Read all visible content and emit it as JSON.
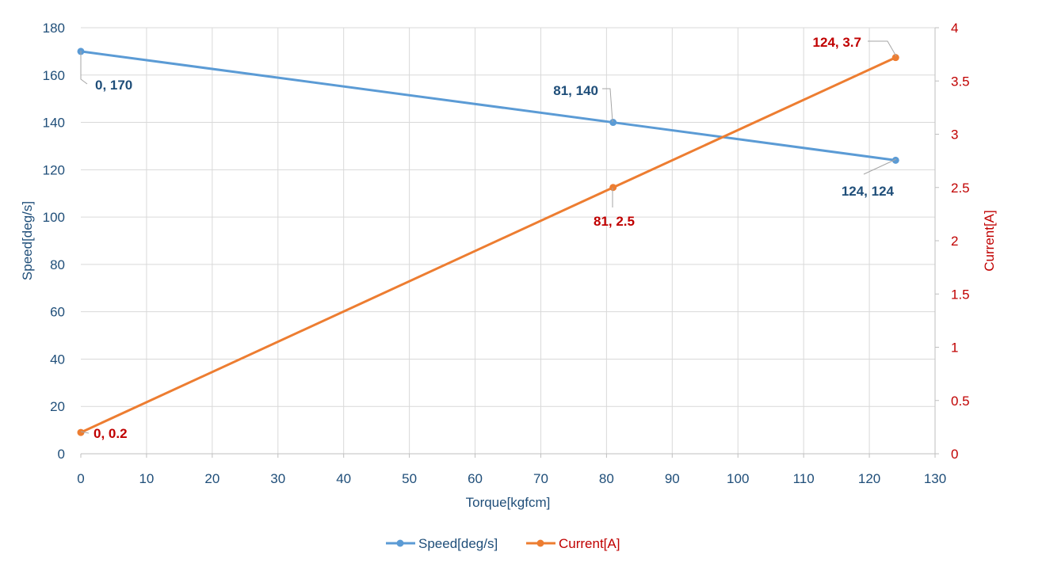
{
  "chart_data": {
    "type": "line",
    "xlabel": "Torque[kgfcm]",
    "ylabel_left": "Speed[deg/s]",
    "ylabel_right": "Current[A]",
    "xlim": [
      0,
      130
    ],
    "ylim_left": [
      0,
      180
    ],
    "ylim_right": [
      0,
      4
    ],
    "x_ticks": [
      "0",
      "10",
      "20",
      "30",
      "40",
      "50",
      "60",
      "70",
      "80",
      "90",
      "100",
      "110",
      "120",
      "130"
    ],
    "y_left_ticks": [
      "0",
      "20",
      "40",
      "60",
      "80",
      "100",
      "120",
      "140",
      "160",
      "180"
    ],
    "y_right_ticks": [
      "0",
      "0.5",
      "1",
      "1.5",
      "2",
      "2.5",
      "3",
      "3.5",
      "4"
    ],
    "grid": true,
    "legend_placement": "bottom",
    "series": [
      {
        "name": "Speed[deg/s]",
        "axis": "left",
        "color": "#5b9bd5",
        "x": [
          0,
          81,
          124
        ],
        "y": [
          170,
          140,
          124
        ],
        "labels": [
          "0, 170",
          "81, 140",
          "124, 124"
        ]
      },
      {
        "name": "Current[A]",
        "axis": "right",
        "color": "#ed7d31",
        "x": [
          0,
          81,
          124
        ],
        "y": [
          0.2,
          2.5,
          3.72
        ],
        "labels": [
          "0, 0.2",
          "81, 2.5",
          "124, 3.7"
        ]
      }
    ]
  }
}
